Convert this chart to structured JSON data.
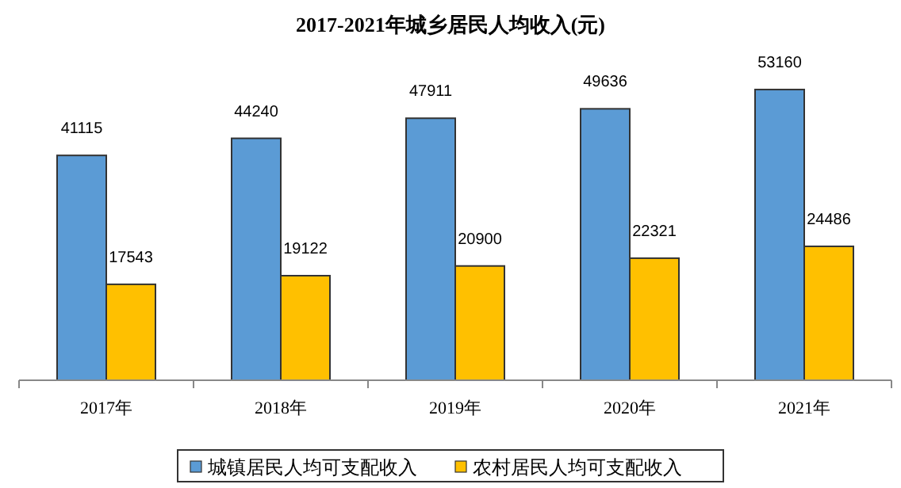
{
  "chart_data": {
    "type": "bar",
    "title": "2017-2021年城乡居民人均收入(元)",
    "categories": [
      "2017年",
      "2018年",
      "2019年",
      "2020年",
      "2021年"
    ],
    "series": [
      {
        "name": "城镇居民人均可支配收入",
        "color": "#5b9bd5",
        "values": [
          41115,
          44240,
          47911,
          49636,
          53160
        ]
      },
      {
        "name": "农村居民人均可支配收入",
        "color": "#ffc000",
        "values": [
          17543,
          19122,
          20900,
          22321,
          24486
        ]
      }
    ],
    "data_labels": true,
    "legend": "bottom"
  }
}
